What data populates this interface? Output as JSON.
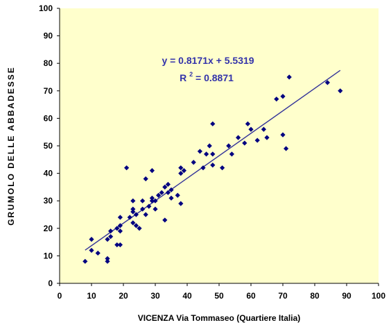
{
  "chart_data": {
    "type": "scatter",
    "title": "",
    "xlabel": "VICENZA  Via Tommaseo (Quartiere Italia)",
    "ylabel": "GRUMOLO  DELLE  ABBADESSE",
    "xlim": [
      0,
      100
    ],
    "ylim": [
      0,
      100
    ],
    "xticks": [
      "0",
      "10",
      "20",
      "30",
      "40",
      "50",
      "60",
      "70",
      "80",
      "90",
      "100"
    ],
    "yticks": [
      "0",
      "10",
      "20",
      "30",
      "40",
      "50",
      "60",
      "70",
      "80",
      "90",
      "100"
    ],
    "grid": false,
    "legend": "none",
    "plot_background": "#FFFFCC",
    "marker_color": "#000080",
    "line_color": "#333399",
    "equation_color": "#3333AA",
    "trendline": {
      "equation": "y = 0.8171x + 5.5319",
      "r2_prefix": "R",
      "r2_sup": "2",
      "r2_value": " = 0.8871",
      "slope": 0.8171,
      "intercept": 5.5319,
      "x_range": [
        8,
        88
      ]
    },
    "points": [
      [
        8,
        8
      ],
      [
        10,
        16
      ],
      [
        10,
        12
      ],
      [
        12,
        11
      ],
      [
        15,
        9
      ],
      [
        15,
        8
      ],
      [
        15,
        16
      ],
      [
        16,
        17
      ],
      [
        16,
        19
      ],
      [
        18,
        14
      ],
      [
        18,
        20
      ],
      [
        19,
        14
      ],
      [
        19,
        19
      ],
      [
        19,
        21
      ],
      [
        19,
        24
      ],
      [
        21,
        42
      ],
      [
        22,
        24
      ],
      [
        23,
        30
      ],
      [
        23,
        27
      ],
      [
        23,
        26
      ],
      [
        23,
        22
      ],
      [
        24,
        25
      ],
      [
        24,
        21
      ],
      [
        25,
        20
      ],
      [
        26,
        30
      ],
      [
        26,
        27
      ],
      [
        27,
        25
      ],
      [
        27,
        38
      ],
      [
        28,
        28
      ],
      [
        29,
        31
      ],
      [
        29,
        30
      ],
      [
        29,
        41
      ],
      [
        30,
        30
      ],
      [
        30,
        27
      ],
      [
        31,
        32
      ],
      [
        32,
        33
      ],
      [
        33,
        35
      ],
      [
        33,
        23
      ],
      [
        34,
        36
      ],
      [
        34,
        33
      ],
      [
        35,
        34
      ],
      [
        35,
        31
      ],
      [
        37,
        32
      ],
      [
        38,
        29
      ],
      [
        38,
        42
      ],
      [
        38,
        40
      ],
      [
        39,
        41
      ],
      [
        42,
        44
      ],
      [
        44,
        48
      ],
      [
        45,
        42
      ],
      [
        46,
        47
      ],
      [
        47,
        50
      ],
      [
        48,
        58
      ],
      [
        48,
        47
      ],
      [
        48,
        43
      ],
      [
        51,
        42
      ],
      [
        53,
        50
      ],
      [
        54,
        47
      ],
      [
        56,
        53
      ],
      [
        58,
        51
      ],
      [
        59,
        58
      ],
      [
        60,
        56
      ],
      [
        62,
        52
      ],
      [
        64,
        56
      ],
      [
        65,
        53
      ],
      [
        68,
        67
      ],
      [
        70,
        68
      ],
      [
        70,
        54
      ],
      [
        71,
        49
      ],
      [
        72,
        75
      ],
      [
        84,
        73
      ],
      [
        88,
        70
      ]
    ]
  }
}
